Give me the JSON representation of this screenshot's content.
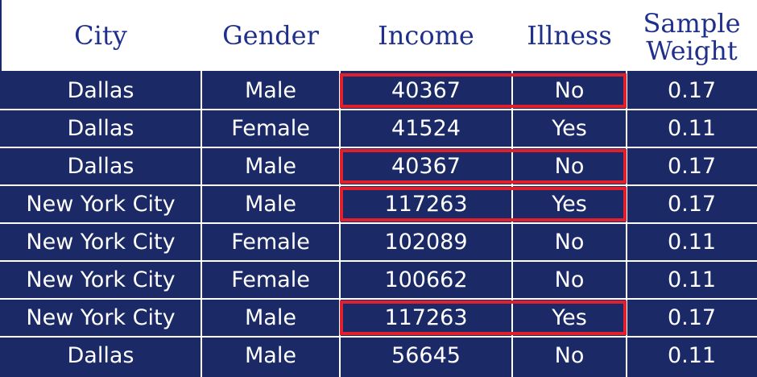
{
  "table": {
    "headers": [
      "City",
      "Gender",
      "Income",
      "Illness",
      "Sample\nWeight"
    ],
    "rows": [
      [
        "Dallas",
        "Male",
        "40367",
        "No",
        "0.17"
      ],
      [
        "Dallas",
        "Female",
        "41524",
        "Yes",
        "0.11"
      ],
      [
        "Dallas",
        "Male",
        "40367",
        "No",
        "0.17"
      ],
      [
        "New York City",
        "Male",
        "117263",
        "Yes",
        "0.17"
      ],
      [
        "New York City",
        "Female",
        "102089",
        "No",
        "0.11"
      ],
      [
        "New York City",
        "Female",
        "100662",
        "No",
        "0.11"
      ],
      [
        "New York City",
        "Male",
        "117263",
        "Yes",
        "0.17"
      ],
      [
        "Dallas",
        "Male",
        "56645",
        "No",
        "0.11"
      ]
    ],
    "highlighted_rows": [
      0,
      2,
      3,
      6
    ]
  },
  "colors": {
    "header_text": "#1e2f8c",
    "table_bg": "#1b2a66",
    "cell_text": "#ffffff",
    "highlight": "#e0202c"
  }
}
